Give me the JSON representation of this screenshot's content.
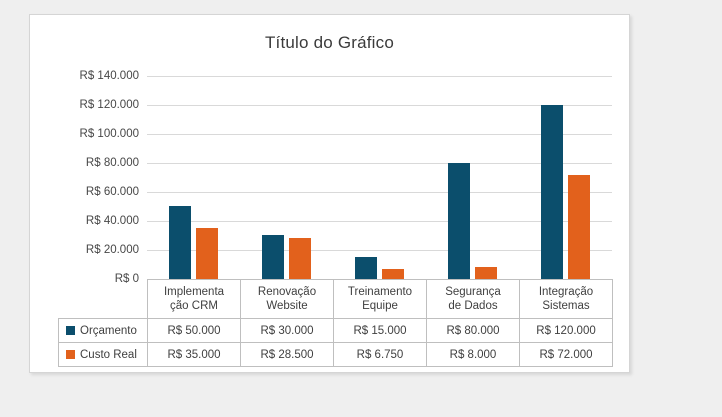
{
  "window": {
    "background_color": "#EFEFEF",
    "chart_area_color": "#FFFFFF"
  },
  "chart_data": {
    "type": "bar",
    "title": "Título do Gráfico",
    "categories": [
      "Implementação CRM",
      "Renovação Website",
      "Treinamento Equipe",
      "Segurança de Dados",
      "Integração Sistemas"
    ],
    "category_display_lines": [
      [
        "Implementa",
        "ção CRM"
      ],
      [
        "Renovação",
        "Website"
      ],
      [
        "Treinamento",
        "Equipe"
      ],
      [
        "Segurança",
        "de Dados"
      ],
      [
        "Integração",
        "Sistemas"
      ]
    ],
    "series": [
      {
        "name": "Orçamento",
        "color": "#0B4E6C",
        "values": [
          50000,
          30000,
          15000,
          80000,
          120000
        ],
        "formatted": [
          "R$ 50.000",
          "R$ 30.000",
          "R$ 15.000",
          "R$ 80.000",
          "R$ 120.000"
        ]
      },
      {
        "name": "Custo Real",
        "color": "#E2611C",
        "values": [
          35000,
          28500,
          6750,
          8000,
          72000
        ],
        "formatted": [
          "R$ 35.000",
          "R$ 28.500",
          "R$ 6.750",
          "R$ 8.000",
          "R$ 72.000"
        ]
      }
    ],
    "y_axis": {
      "min": 0,
      "max": 140000,
      "step": 20000,
      "ticks": [
        {
          "value": 140000,
          "label": "R$ 140.000"
        },
        {
          "value": 120000,
          "label": "R$ 120.000"
        },
        {
          "value": 100000,
          "label": "R$ 100.000"
        },
        {
          "value": 80000,
          "label": "R$ 80.000"
        },
        {
          "value": 60000,
          "label": "R$ 60.000"
        },
        {
          "value": 40000,
          "label": "R$ 40.000"
        },
        {
          "value": 20000,
          "label": "R$ 20.000"
        },
        {
          "value": 0,
          "label": "R$ 0"
        }
      ]
    },
    "grid": true,
    "legend_position": "data-table-left",
    "colors": {
      "gridline": "#D9D9D9",
      "table_border": "#BFBFBF",
      "text": "#404040",
      "title": "#3B3B3B"
    }
  }
}
